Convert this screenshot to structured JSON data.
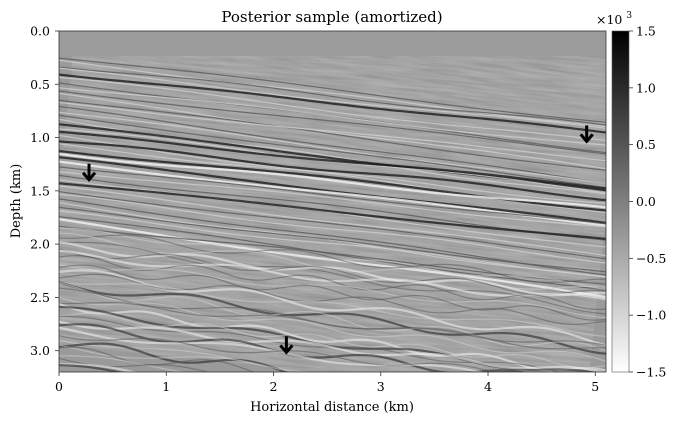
{
  "chart_data": {
    "type": "heatmap",
    "title": "Posterior sample (amortized)",
    "xlabel": "Horizontal distance (km)",
    "ylabel": "Depth (km)",
    "xlim": [
      0,
      5.1
    ],
    "ylim": [
      3.2,
      0.0
    ],
    "x_ticks": [
      0,
      1,
      2,
      3,
      4,
      5
    ],
    "y_ticks": [
      0.0,
      0.5,
      1.0,
      1.5,
      2.0,
      2.5,
      3.0
    ],
    "x_tick_labels": [
      "0",
      "1",
      "2",
      "3",
      "4",
      "5"
    ],
    "y_tick_labels": [
      "0.0",
      "0.5",
      "1.0",
      "1.5",
      "2.0",
      "2.5",
      "3.0"
    ],
    "grid": false,
    "colormap": "Greys",
    "colorbar": {
      "range": [
        -1.5,
        1.5
      ],
      "ticks": [
        1.5,
        1.0,
        0.5,
        0.0,
        -0.5,
        -1.0,
        -1.5
      ],
      "tick_labels": [
        "1.5",
        "1.0",
        "0.5",
        "0.0",
        "−0.5",
        "−1.0",
        "−1.5"
      ],
      "multiplier_base": "×10",
      "multiplier_exp": "3",
      "low_color": "#ffffff",
      "high_color": "#000000"
    },
    "annotations": [
      {
        "type": "arrow-down",
        "x": 0.28,
        "y": 1.33
      },
      {
        "type": "arrow-down",
        "x": 4.92,
        "y": 0.97
      },
      {
        "type": "arrow-down",
        "x": 2.12,
        "y": 2.95
      }
    ]
  }
}
